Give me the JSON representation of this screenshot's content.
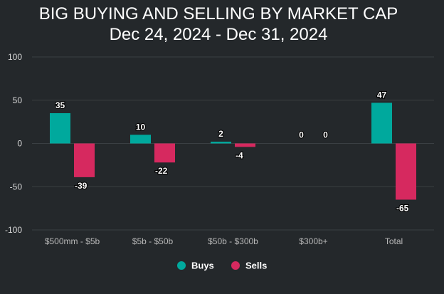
{
  "chart_data": {
    "type": "bar",
    "title": "BIG BUYING AND SELLING BY MARKET CAP",
    "subtitle": "Dec 24, 2024 - Dec 31, 2024",
    "categories": [
      "$500mm - $5b",
      "$5b - $50b",
      "$50b - $300b",
      "$300b+",
      "Total"
    ],
    "series": [
      {
        "name": "Buys",
        "values": [
          35,
          10,
          2,
          0,
          47
        ],
        "color": "#00a99d"
      },
      {
        "name": "Sells",
        "values": [
          -39,
          -22,
          -4,
          0,
          -65
        ],
        "color": "#d6295f"
      }
    ],
    "data_labels": {
      "Buys": [
        "35",
        "10",
        "2",
        "0",
        "47"
      ],
      "Sells": [
        "-39",
        "-22",
        "-4",
        "0",
        "-65"
      ]
    },
    "yticks": [
      "100",
      "50",
      "0",
      "-50",
      "-100"
    ],
    "ytick_values": [
      100,
      50,
      0,
      -50,
      -100
    ],
    "ylim": [
      -100,
      100
    ],
    "grid": true,
    "legend_position": "bottom-center",
    "background": "#24282b",
    "gridline_color": "#3a3f43"
  }
}
